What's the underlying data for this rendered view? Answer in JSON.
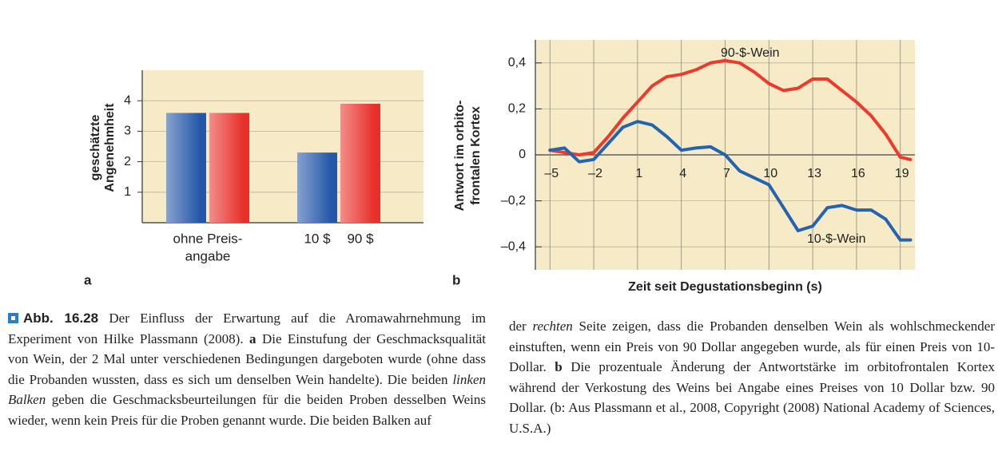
{
  "chart_data": [
    {
      "type": "bar",
      "panel": "a",
      "ylabel": [
        "geschätzte",
        "Angenehmheit"
      ],
      "categories": [
        [
          "ohne Preis-",
          "angabe"
        ],
        [
          "10 $",
          "90 $"
        ]
      ],
      "series": [
        {
          "color": "#2457a8",
          "values": [
            3.6,
            2.3
          ]
        },
        {
          "color": "#e8302a",
          "values": [
            3.6,
            3.9
          ]
        }
      ],
      "ylim": [
        0,
        5
      ],
      "yticks": [
        1,
        2,
        3,
        4
      ],
      "grid": true,
      "background": "#f6ebc6"
    },
    {
      "type": "line",
      "panel": "b",
      "xlabel": "Zeit seit Degustationsbeginn (s)",
      "ylabel": [
        "Antwort im orbito-",
        "frontalen Kortex"
      ],
      "x": [
        -5,
        -4,
        -3,
        -2,
        -1,
        0,
        1,
        2,
        3,
        4,
        5,
        6,
        7,
        8,
        9,
        10,
        11,
        12,
        13,
        14,
        15,
        16,
        17,
        18,
        19,
        19.7
      ],
      "series": [
        {
          "name": "90-$-Wein",
          "color": "#ee3a2c",
          "values": [
            0.02,
            0.01,
            0,
            0.01,
            0.08,
            0.16,
            0.23,
            0.3,
            0.34,
            0.35,
            0.37,
            0.4,
            0.41,
            0.4,
            0.36,
            0.31,
            0.28,
            0.29,
            0.33,
            0.33,
            0.28,
            0.23,
            0.17,
            0.09,
            -0.01,
            -0.02
          ]
        },
        {
          "name": "10-$-Wein",
          "color": "#2463b0",
          "values": [
            0.02,
            0.03,
            -0.03,
            -0.02,
            0.05,
            0.12,
            0.145,
            0.13,
            0.08,
            0.02,
            0.03,
            0.035,
            0,
            -0.07,
            -0.1,
            -0.13,
            -0.23,
            -0.33,
            -0.31,
            -0.23,
            -0.22,
            -0.24,
            -0.24,
            -0.28,
            -0.37,
            -0.37
          ]
        }
      ],
      "xlim": [
        -6,
        20
      ],
      "xticks": [
        {
          "value": -5,
          "label": "–5"
        },
        {
          "value": -2,
          "label": "–2"
        },
        1,
        4,
        7,
        10,
        13,
        16,
        19
      ],
      "ylim": [
        -0.5,
        0.5
      ],
      "yticks": [
        {
          "value": 0.4,
          "label": "0,4"
        },
        {
          "value": 0.2,
          "label": "0,2"
        },
        0,
        {
          "value": -0.2,
          "label": "–0,2"
        },
        {
          "value": -0.4,
          "label": "–0,4"
        }
      ],
      "grid": true,
      "background": "#f6ebc6"
    }
  ],
  "caption": {
    "left": [
      {
        "text": "Abb. 16.28",
        "style": "label"
      },
      {
        "text": " Der Einfluss der Erwartung auf die Aromawahrnehmung im Experiment von Hilke Plassmann (2008). ",
        "style": "normal"
      },
      {
        "text": "a",
        "style": "bold"
      },
      {
        "text": " Die Einstufung der Geschmacksqualität von Wein, der 2 Mal unter verschiedenen Bedingungen dargeboten wurde (ohne dass die Probanden wussten, dass es sich um denselben Wein handelte). Die beiden ",
        "style": "normal"
      },
      {
        "text": "linken Balken",
        "style": "italic"
      },
      {
        "text": " geben die Geschmacksbeurteilungen für die beiden Proben desselben Weins wieder, wenn kein Preis für die Proben genannt wurde. Die beiden Balken auf",
        "style": "normal"
      }
    ],
    "right": [
      {
        "text": "der ",
        "style": "normal"
      },
      {
        "text": "rechten",
        "style": "italic"
      },
      {
        "text": " Seite zeigen, dass die Probanden denselben Wein als wohlschmeckender einstuften, wenn ein Preis von 90 Dollar angegeben wurde, als für einen Preis von 10-Dollar. ",
        "style": "normal"
      },
      {
        "text": "b",
        "style": "bold"
      },
      {
        "text": " Die prozentuale Änderung der Antwortstärke im orbitofrontalen Kortex während der Verkostung des Weins bei Angabe eines Preises von 10 Dollar bzw. 90 Dollar. (b: Aus Plassmann et al., 2008, Copyright (2008) National Academy of Sciences, U.S.A.)",
        "style": "normal"
      }
    ]
  }
}
